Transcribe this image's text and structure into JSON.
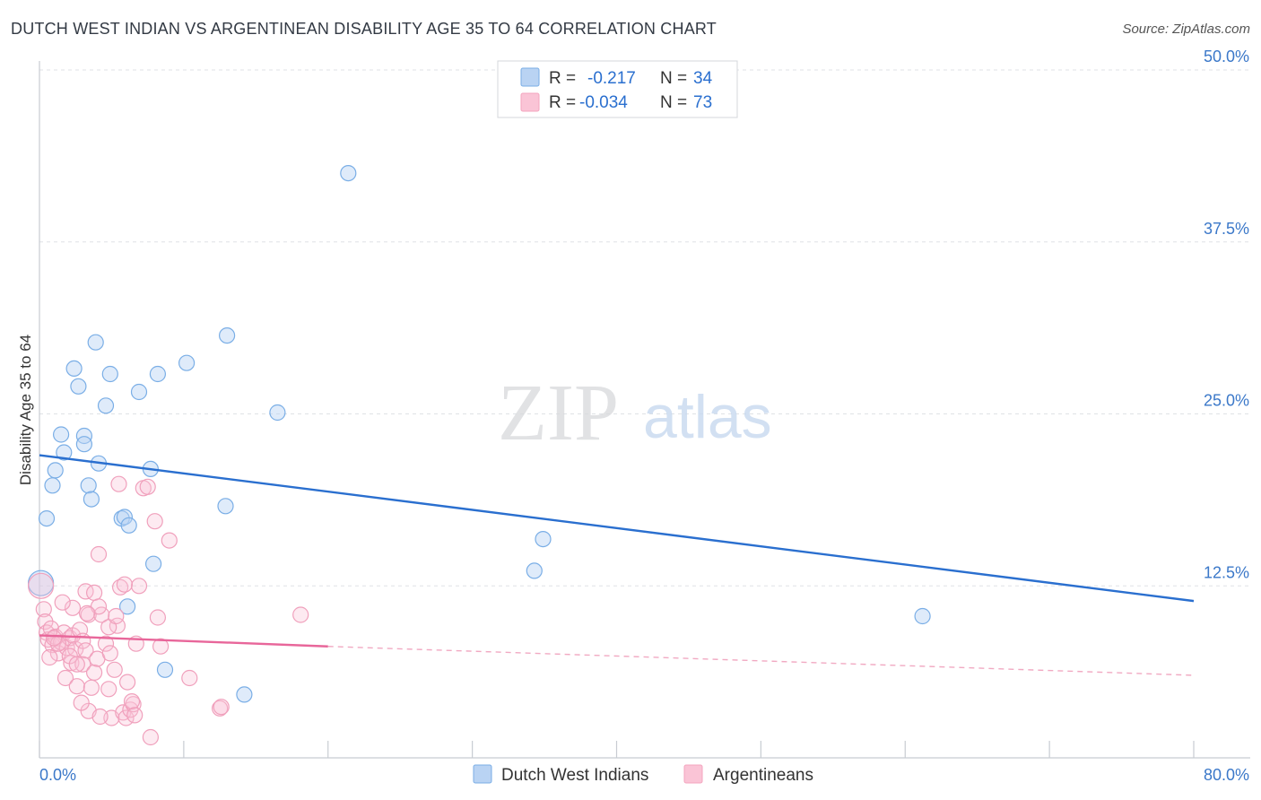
{
  "header": {
    "title": "DUTCH WEST INDIAN VS ARGENTINEAN DISABILITY AGE 35 TO 64 CORRELATION CHART",
    "source": "Source: ZipAtlas.com"
  },
  "watermark": {
    "zip": "ZIP",
    "atlas": "atlas"
  },
  "chart_data": {
    "type": "scatter",
    "title": "DUTCH WEST INDIAN VS ARGENTINEAN DISABILITY AGE 35 TO 64 CORRELATION CHART",
    "xlabel": "",
    "ylabel": "Disability Age 35 to 64",
    "xlim": [
      0,
      80
    ],
    "ylim": [
      0,
      50
    ],
    "x_tick_labels": [
      "0.0%",
      "80.0%"
    ],
    "y_tick_values": [
      12.5,
      25.0,
      37.5,
      50.0
    ],
    "y_tick_labels": [
      "12.5%",
      "25.0%",
      "37.5%",
      "50.0%"
    ],
    "grid": true,
    "legend_position": "top-center",
    "series": [
      {
        "name": "Dutch West Indians",
        "color": "#7aaee6",
        "line_color": "#2a6fcf",
        "r_label": "R =",
        "r_value": "-0.217",
        "n_label": "N =",
        "n_value": "34",
        "trend": {
          "x": [
            0,
            80
          ],
          "y": [
            22.0,
            11.4
          ]
        },
        "points": [
          [
            21.4,
            42.5
          ],
          [
            13.0,
            30.7
          ],
          [
            3.9,
            30.2
          ],
          [
            10.2,
            28.7
          ],
          [
            2.4,
            28.3
          ],
          [
            4.9,
            27.9
          ],
          [
            8.2,
            27.9
          ],
          [
            2.7,
            27.0
          ],
          [
            6.9,
            26.6
          ],
          [
            4.6,
            25.6
          ],
          [
            16.5,
            25.1
          ],
          [
            1.5,
            23.5
          ],
          [
            3.1,
            23.4
          ],
          [
            3.1,
            22.8
          ],
          [
            1.7,
            22.2
          ],
          [
            4.1,
            21.4
          ],
          [
            7.7,
            21.0
          ],
          [
            1.1,
            20.9
          ],
          [
            0.9,
            19.8
          ],
          [
            3.4,
            19.8
          ],
          [
            3.6,
            18.8
          ],
          [
            12.9,
            18.3
          ],
          [
            0.5,
            17.4
          ],
          [
            5.7,
            17.4
          ],
          [
            5.9,
            17.5
          ],
          [
            6.2,
            16.9
          ],
          [
            34.9,
            15.9
          ],
          [
            7.9,
            14.1
          ],
          [
            34.3,
            13.6
          ],
          [
            6.1,
            11.0
          ],
          [
            61.2,
            10.3
          ],
          [
            8.7,
            6.4
          ],
          [
            14.2,
            4.6
          ],
          [
            0.1,
            12.7
          ]
        ]
      },
      {
        "name": "Argentineans",
        "color": "#f4a5bf",
        "line_color": "#e8669a",
        "r_label": "R =",
        "r_value": "-0.034",
        "n_label": "N =",
        "n_value": "73",
        "trend": {
          "x": [
            0,
            20
          ],
          "y": [
            8.9,
            8.1
          ]
        },
        "trend_dashed": {
          "x": [
            20,
            80
          ],
          "y": [
            8.1,
            6.0
          ]
        },
        "points": [
          [
            0.1,
            12.5
          ],
          [
            0.3,
            10.8
          ],
          [
            0.4,
            9.9
          ],
          [
            0.5,
            9.1
          ],
          [
            0.6,
            8.6
          ],
          [
            0.8,
            9.4
          ],
          [
            0.9,
            8.2
          ],
          [
            1.1,
            8.8
          ],
          [
            1.3,
            7.6
          ],
          [
            1.5,
            8.4
          ],
          [
            1.7,
            9.1
          ],
          [
            1.9,
            8.0
          ],
          [
            2.1,
            8.7
          ],
          [
            2.3,
            8.9
          ],
          [
            2.5,
            7.9
          ],
          [
            2.8,
            9.3
          ],
          [
            3.0,
            8.5
          ],
          [
            3.2,
            7.8
          ],
          [
            3.4,
            10.4
          ],
          [
            1.8,
            5.8
          ],
          [
            2.2,
            6.9
          ],
          [
            2.6,
            5.2
          ],
          [
            3.0,
            6.8
          ],
          [
            3.4,
            3.4
          ],
          [
            3.6,
            5.1
          ],
          [
            3.8,
            6.2
          ],
          [
            4.0,
            7.2
          ],
          [
            4.3,
            10.4
          ],
          [
            4.6,
            8.3
          ],
          [
            4.8,
            5.0
          ],
          [
            5.0,
            2.9
          ],
          [
            5.2,
            6.4
          ],
          [
            5.4,
            9.6
          ],
          [
            5.6,
            12.4
          ],
          [
            5.8,
            3.3
          ],
          [
            6.0,
            2.9
          ],
          [
            6.1,
            5.5
          ],
          [
            6.3,
            3.5
          ],
          [
            6.5,
            3.9
          ],
          [
            6.7,
            8.3
          ],
          [
            6.9,
            12.5
          ],
          [
            7.2,
            19.6
          ],
          [
            7.5,
            19.7
          ],
          [
            7.7,
            1.5
          ],
          [
            8.0,
            17.2
          ],
          [
            8.2,
            10.2
          ],
          [
            8.4,
            8.1
          ],
          [
            9.0,
            15.8
          ],
          [
            10.4,
            5.8
          ],
          [
            12.5,
            3.6
          ],
          [
            12.6,
            3.7
          ],
          [
            18.1,
            10.4
          ],
          [
            3.2,
            12.1
          ],
          [
            4.1,
            14.8
          ],
          [
            5.9,
            12.6
          ],
          [
            4.2,
            3.0
          ],
          [
            2.3,
            10.9
          ],
          [
            3.8,
            12.0
          ],
          [
            2.1,
            7.4
          ],
          [
            1.3,
            8.3
          ],
          [
            1.6,
            11.3
          ],
          [
            2.6,
            6.8
          ],
          [
            4.1,
            11.0
          ],
          [
            4.8,
            9.5
          ],
          [
            5.5,
            19.9
          ],
          [
            6.4,
            4.1
          ],
          [
            1.0,
            8.7
          ],
          [
            2.9,
            4.0
          ],
          [
            0.7,
            7.3
          ],
          [
            3.3,
            10.5
          ],
          [
            4.9,
            7.6
          ],
          [
            5.3,
            10.3
          ],
          [
            6.6,
            3.1
          ]
        ]
      }
    ]
  }
}
